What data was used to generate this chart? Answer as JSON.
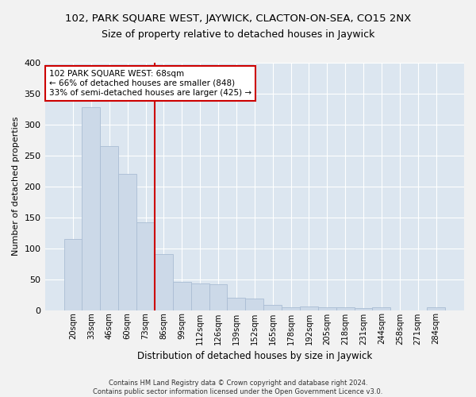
{
  "title": "102, PARK SQUARE WEST, JAYWICK, CLACTON-ON-SEA, CO15 2NX",
  "subtitle": "Size of property relative to detached houses in Jaywick",
  "xlabel": "Distribution of detached houses by size in Jaywick",
  "ylabel": "Number of detached properties",
  "bar_color": "#ccd9e8",
  "bar_edge_color": "#aabdd4",
  "background_color": "#dce6f0",
  "grid_color": "#ffffff",
  "fig_background": "#f2f2f2",
  "categories": [
    "20sqm",
    "33sqm",
    "46sqm",
    "60sqm",
    "73sqm",
    "86sqm",
    "99sqm",
    "112sqm",
    "126sqm",
    "139sqm",
    "152sqm",
    "165sqm",
    "178sqm",
    "192sqm",
    "205sqm",
    "218sqm",
    "231sqm",
    "244sqm",
    "258sqm",
    "271sqm",
    "284sqm"
  ],
  "values": [
    115,
    328,
    265,
    220,
    142,
    90,
    45,
    43,
    42,
    20,
    19,
    9,
    5,
    6,
    5,
    5,
    3,
    4,
    0,
    0,
    4
  ],
  "ylim": [
    0,
    400
  ],
  "yticks": [
    0,
    50,
    100,
    150,
    200,
    250,
    300,
    350,
    400
  ],
  "red_line_x": 4.5,
  "annotation_text": "102 PARK SQUARE WEST: 68sqm\n← 66% of detached houses are smaller (848)\n33% of semi-detached houses are larger (425) →",
  "annotation_box_color": "#ffffff",
  "annotation_border_color": "#cc0000",
  "red_line_color": "#cc0000",
  "footer_line1": "Contains HM Land Registry data © Crown copyright and database right 2024.",
  "footer_line2": "Contains public sector information licensed under the Open Government Licence v3.0.",
  "title_fontsize": 9.5,
  "subtitle_fontsize": 9
}
